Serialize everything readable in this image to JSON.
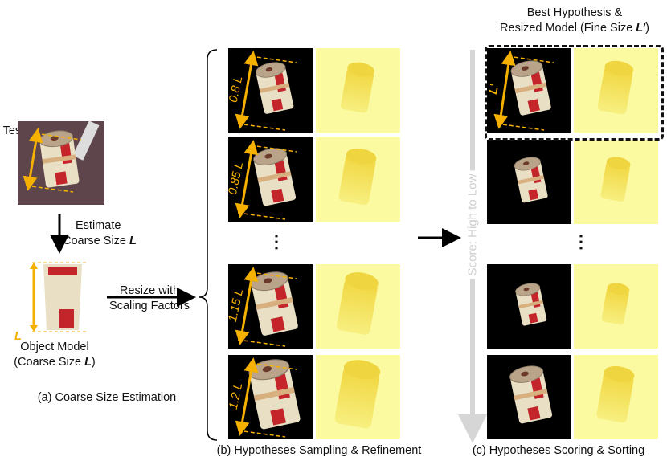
{
  "colors": {
    "accent": "#f5b000",
    "depth": "#f3dc40",
    "depth_bg": "#fbfaa0",
    "score_arrow": "#d6d6d6"
  },
  "section_a": {
    "input_label": "Test RGBD Image",
    "estimate_line1": "Estimate",
    "estimate_line2": "Coarse Size ",
    "size_symbol": "L",
    "model_label_line1": "Object Model",
    "model_label_line2_pre": "(Coarse Size ",
    "model_label_line2_post": ")",
    "resize_line1": "Resize with",
    "resize_line2": "Scaling Factors",
    "caption": "(a) Coarse Size Estimation"
  },
  "section_b": {
    "scales": [
      "0.8 L",
      "0.85 L",
      "1.15 L",
      "1.2 L"
    ],
    "ellipsis": "⋮",
    "caption": "(b) Hypotheses Sampling & Refinement"
  },
  "section_c": {
    "best_line1": "Best Hypothesis &",
    "best_line2_pre": "Resized Model (Fine Size ",
    "best_symbol": "L’",
    "best_line2_post": ")",
    "best_tile_label": "L’",
    "score_label": "Score: High to Low",
    "ellipsis": "⋮",
    "caption": "(c) Hypotheses Scoring & Sorting"
  }
}
